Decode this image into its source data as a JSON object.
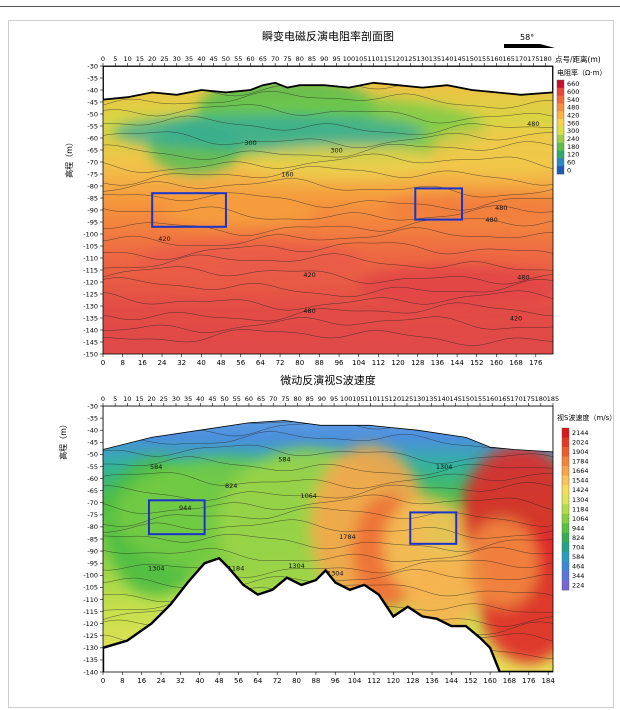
{
  "chart_data": [
    {
      "type": "heatmap",
      "title": "瞬变电磁反演电阻率剖面图",
      "ylabel": "高程（m）",
      "x_top_label": "点号/距离(m)",
      "direction_label": "58°",
      "x_top_ticks": [
        "0",
        "5",
        "10",
        "15",
        "20",
        "25",
        "30",
        "35",
        "40",
        "45",
        "50",
        "55",
        "60",
        "65",
        "70",
        "75",
        "80",
        "85",
        "90",
        "95",
        "100",
        "105",
        "110",
        "115",
        "120",
        "125",
        "130",
        "135",
        "140",
        "145",
        "150",
        "155",
        "160",
        "165",
        "170",
        "175",
        "180"
      ],
      "x_top_range": [
        0,
        183
      ],
      "x_bottom_ticks": [
        "0",
        "8",
        "16",
        "24",
        "32",
        "40",
        "48",
        "56",
        "64",
        "72",
        "80",
        "88",
        "96",
        "104",
        "112",
        "120",
        "128",
        "136",
        "144",
        "152",
        "160",
        "168",
        "176"
      ],
      "x_bottom_range": [
        0,
        183
      ],
      "y_ticks": [
        "-30",
        "-35",
        "-40",
        "-45",
        "-50",
        "-55",
        "-60",
        "-65",
        "-70",
        "-75",
        "-80",
        "-85",
        "-90",
        "-95",
        "-100",
        "-105",
        "-110",
        "-115",
        "-120",
        "-125",
        "-130",
        "-135",
        "-140",
        "-145",
        "-150"
      ],
      "ylim": [
        -150,
        -30
      ],
      "colorbar_title": "电阻率（Ω·m）",
      "colorbar_values": [
        "660",
        "600",
        "540",
        "480",
        "420",
        "360",
        "300",
        "240",
        "180",
        "120",
        "60",
        "0"
      ],
      "colorbar_colors": [
        "#c8102e",
        "#e8453c",
        "#f06a3a",
        "#f5913c",
        "#f8b440",
        "#f5d545",
        "#d9e23f",
        "#9fd043",
        "#5fbf4a",
        "#2faa6a",
        "#2f86c8",
        "#1c5bb5"
      ],
      "contour_labels": [
        {
          "text": "300",
          "x": 60,
          "y": -63
        },
        {
          "text": "300",
          "x": 95,
          "y": -66
        },
        {
          "text": "480",
          "x": 175,
          "y": -55
        },
        {
          "text": "160",
          "x": 75,
          "y": -76
        },
        {
          "text": "420",
          "x": 25,
          "y": -103
        },
        {
          "text": "480",
          "x": 162,
          "y": -90
        },
        {
          "text": "480",
          "x": 158,
          "y": -95
        },
        {
          "text": "420",
          "x": 84,
          "y": -118
        },
        {
          "text": "480",
          "x": 171,
          "y": -119
        },
        {
          "text": "480",
          "x": 84,
          "y": -133
        },
        {
          "text": "420",
          "x": 168,
          "y": -136
        }
      ],
      "anomaly_boxes": [
        {
          "x1": 20,
          "x2": 50,
          "y1": -83,
          "y2": -97
        },
        {
          "x1": 127,
          "x2": 146,
          "y1": -81,
          "y2": -94
        }
      ]
    },
    {
      "type": "heatmap",
      "title": "微动反演视S波速度",
      "ylabel": "高程（m）",
      "x_top_ticks": [
        "0",
        "5",
        "10",
        "15",
        "20",
        "25",
        "30",
        "35",
        "40",
        "45",
        "50",
        "55",
        "60",
        "65",
        "70",
        "75",
        "80",
        "85",
        "90",
        "95",
        "100",
        "105",
        "110",
        "115",
        "120",
        "125",
        "130",
        "135",
        "140",
        "145",
        "150",
        "155",
        "160",
        "165",
        "170",
        "175",
        "180",
        "185"
      ],
      "x_top_range": [
        0,
        185
      ],
      "x_bottom_ticks": [
        "0",
        "8",
        "16",
        "24",
        "32",
        "40",
        "48",
        "56",
        "64",
        "72",
        "80",
        "88",
        "96",
        "104",
        "112",
        "120",
        "128",
        "136",
        "144",
        "152",
        "160",
        "168",
        "176",
        "184"
      ],
      "x_bottom_range": [
        0,
        186
      ],
      "y_ticks": [
        "-30",
        "-35",
        "-40",
        "-45",
        "-50",
        "-55",
        "-60",
        "-65",
        "-70",
        "-75",
        "-80",
        "-85",
        "-90",
        "-95",
        "-100",
        "-105",
        "-110",
        "-115",
        "-120",
        "-125",
        "-130",
        "-135",
        "-140"
      ],
      "ylim": [
        -140,
        -30
      ],
      "colorbar_title": "视S波速度（m/s）",
      "colorbar_values": [
        "2144",
        "2024",
        "1904",
        "1784",
        "1664",
        "1544",
        "1424",
        "1304",
        "1184",
        "1064",
        "944",
        "824",
        "704",
        "584",
        "464",
        "344",
        "224"
      ],
      "colorbar_colors": [
        "#d7191c",
        "#e23b25",
        "#ec5d2e",
        "#f3823a",
        "#f7a449",
        "#f9c35a",
        "#f4dc5e",
        "#dbe65a",
        "#b3dd4d",
        "#86cf43",
        "#5abf42",
        "#35ad57",
        "#25a38a",
        "#2c9bc0",
        "#3d87d6",
        "#5b75db",
        "#7a66d8"
      ],
      "contour_labels": [
        {
          "text": "584",
          "x": 22,
          "y": -56
        },
        {
          "text": "584",
          "x": 75,
          "y": -53
        },
        {
          "text": "824",
          "x": 53,
          "y": -64
        },
        {
          "text": "944",
          "x": 34,
          "y": -73
        },
        {
          "text": "1064",
          "x": 85,
          "y": -68
        },
        {
          "text": "1184",
          "x": 55,
          "y": -98
        },
        {
          "text": "1304",
          "x": 22,
          "y": -98
        },
        {
          "text": "1304",
          "x": 80,
          "y": -97
        },
        {
          "text": "1304",
          "x": 96,
          "y": -100
        },
        {
          "text": "1784",
          "x": 101,
          "y": -85
        },
        {
          "text": "1304",
          "x": 141,
          "y": -56
        }
      ],
      "anomaly_boxes": [
        {
          "x1": 19,
          "x2": 42,
          "y1": -69,
          "y2": -83
        },
        {
          "x1": 127,
          "x2": 146,
          "y1": -74,
          "y2": -87
        }
      ]
    }
  ]
}
